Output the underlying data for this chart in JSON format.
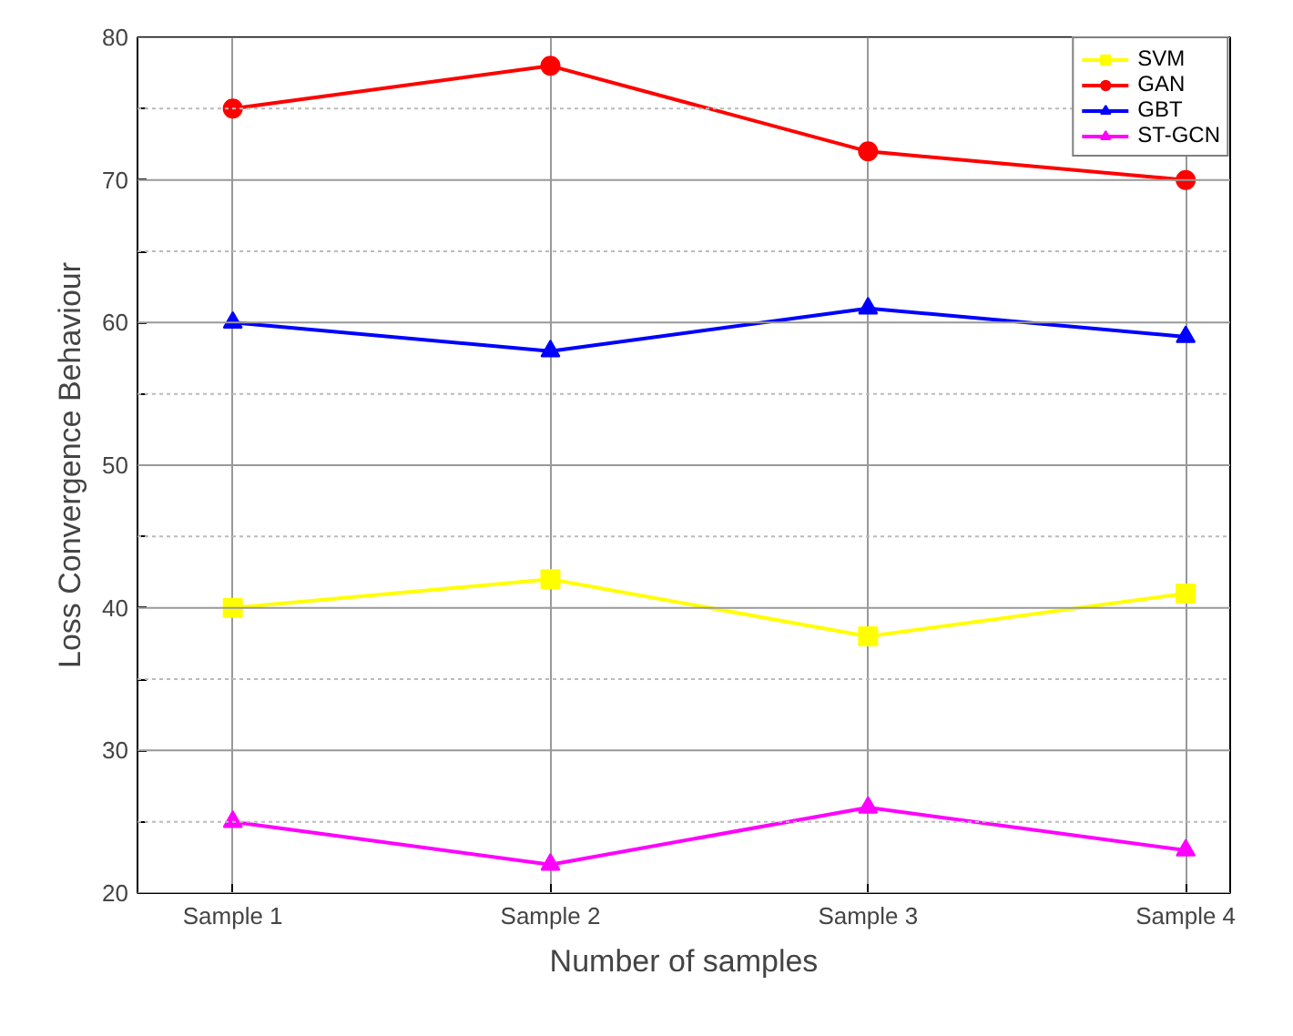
{
  "chart_data": {
    "type": "line",
    "xlabel": "Number of samples",
    "ylabel": "Loss Convergence Behaviour",
    "categories": [
      "Sample 1",
      "Sample 2",
      "Sample 3",
      "Sample 4"
    ],
    "series": [
      {
        "name": "SVM",
        "color": "#ffff00",
        "marker": "square",
        "values": [
          40,
          42,
          38,
          41
        ]
      },
      {
        "name": "GAN",
        "color": "#ff0000",
        "marker": "circle",
        "values": [
          75,
          78,
          72,
          70
        ]
      },
      {
        "name": "GBT",
        "color": "#0000ff",
        "marker": "triangle",
        "values": [
          60,
          58,
          61,
          59
        ]
      },
      {
        "name": "ST-GCN",
        "color": "#ff00ff",
        "marker": "triangle",
        "values": [
          25,
          22,
          26,
          23
        ]
      }
    ],
    "ylim": [
      20,
      80
    ],
    "yticks": [
      20,
      {
        "value": 25,
        "label": null
      },
      30,
      {
        "value": 35,
        "label": null
      },
      40,
      {
        "value": 45,
        "label": null
      },
      50,
      {
        "value": 55,
        "label": null
      },
      60,
      {
        "value": 65,
        "label": null
      },
      70,
      {
        "value": 75,
        "label": null
      },
      80
    ],
    "grid": true,
    "legend": "top right",
    "line_style": "solid"
  }
}
